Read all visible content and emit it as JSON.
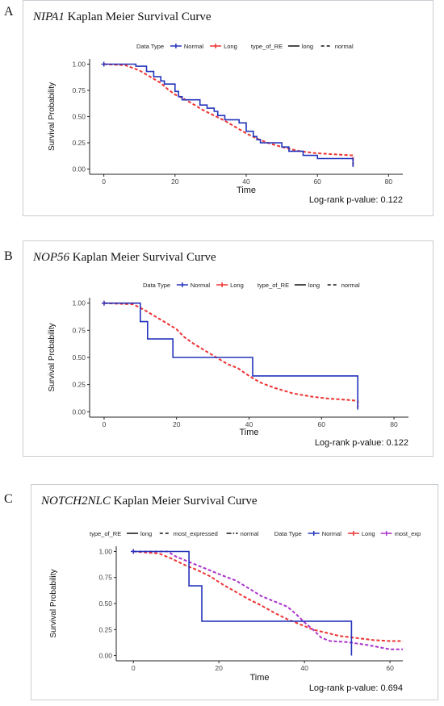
{
  "panels": [
    {
      "letter": "A",
      "title_gene": "NIPA1",
      "title_rest": " Kaplan Meier Survival Curve",
      "legend": {
        "groups": [
          {
            "title": "Data Type",
            "items": [
              {
                "label": "Normal",
                "kind": "series",
                "color": "#2233bb"
              },
              {
                "label": "Long",
                "kind": "series",
                "color": "#ee3333"
              }
            ]
          },
          {
            "title": "type_of_RE",
            "items": [
              {
                "label": "long",
                "kind": "solid"
              },
              {
                "label": "normal",
                "kind": "dashed"
              }
            ]
          }
        ]
      },
      "pvalue_text": "Log-rank p-value:  0.122",
      "chart_data": {
        "type": "line",
        "xlabel": "Time",
        "ylabel": "Survival Probability",
        "xlim": [
          -4,
          84
        ],
        "ylim": [
          -0.05,
          1.05
        ],
        "xticks": [
          0,
          20,
          40,
          60,
          80
        ],
        "yticks": [
          0.0,
          0.25,
          0.5,
          0.75,
          1.0
        ],
        "ytick_labels": [
          "0.00",
          "0.25",
          "0.50",
          "0.75",
          "1.00"
        ],
        "grid": false,
        "series": [
          {
            "name": "Normal",
            "color": "#2233bb",
            "dash": false,
            "points": [
              [
                0,
                1.0
              ],
              [
                9,
                1.0
              ],
              [
                9,
                0.98
              ],
              [
                12,
                0.98
              ],
              [
                12,
                0.93
              ],
              [
                14,
                0.93
              ],
              [
                14,
                0.88
              ],
              [
                16,
                0.88
              ],
              [
                16,
                0.84
              ],
              [
                17,
                0.84
              ],
              [
                17,
                0.81
              ],
              [
                20,
                0.81
              ],
              [
                20,
                0.74
              ],
              [
                21,
                0.74
              ],
              [
                21,
                0.69
              ],
              [
                22,
                0.69
              ],
              [
                22,
                0.66
              ],
              [
                27,
                0.66
              ],
              [
                27,
                0.61
              ],
              [
                29,
                0.61
              ],
              [
                29,
                0.58
              ],
              [
                31,
                0.58
              ],
              [
                31,
                0.55
              ],
              [
                32,
                0.55
              ],
              [
                32,
                0.51
              ],
              [
                34,
                0.51
              ],
              [
                34,
                0.47
              ],
              [
                38,
                0.47
              ],
              [
                38,
                0.44
              ],
              [
                40,
                0.44
              ],
              [
                40,
                0.36
              ],
              [
                42,
                0.36
              ],
              [
                42,
                0.31
              ],
              [
                43,
                0.31
              ],
              [
                43,
                0.28
              ],
              [
                44,
                0.28
              ],
              [
                44,
                0.25
              ],
              [
                50,
                0.25
              ],
              [
                50,
                0.21
              ],
              [
                52,
                0.21
              ],
              [
                52,
                0.17
              ],
              [
                56,
                0.17
              ],
              [
                56,
                0.13
              ],
              [
                60,
                0.13
              ],
              [
                60,
                0.1
              ],
              [
                70,
                0.1
              ],
              [
                70,
                0.02
              ]
            ]
          },
          {
            "name": "Long",
            "color": "#ee3333",
            "dash": true,
            "points": [
              [
                0,
                1.0
              ],
              [
                6,
                0.99
              ],
              [
                10,
                0.94
              ],
              [
                13,
                0.88
              ],
              [
                16,
                0.82
              ],
              [
                18,
                0.76
              ],
              [
                20,
                0.71
              ],
              [
                22,
                0.68
              ],
              [
                25,
                0.62
              ],
              [
                28,
                0.56
              ],
              [
                31,
                0.51
              ],
              [
                34,
                0.46
              ],
              [
                37,
                0.4
              ],
              [
                40,
                0.34
              ],
              [
                43,
                0.29
              ],
              [
                46,
                0.25
              ],
              [
                50,
                0.21
              ],
              [
                55,
                0.17
              ],
              [
                60,
                0.15
              ],
              [
                65,
                0.14
              ],
              [
                70,
                0.13
              ],
              [
                70,
                0.04
              ]
            ]
          }
        ]
      }
    },
    {
      "letter": "B",
      "title_gene": "NOP56",
      "title_rest": " Kaplan Meier Survival Curve",
      "legend": {
        "groups": [
          {
            "title": "Data Type",
            "items": [
              {
                "label": "Normal",
                "kind": "series",
                "color": "#2233bb"
              },
              {
                "label": "Long",
                "kind": "series",
                "color": "#ee3333"
              }
            ]
          },
          {
            "title": "type_of_RE",
            "items": [
              {
                "label": "long",
                "kind": "solid"
              },
              {
                "label": "normal",
                "kind": "dashed"
              }
            ]
          }
        ]
      },
      "pvalue_text": "Log-rank p-value:  0.122",
      "chart_data": {
        "type": "line",
        "xlabel": "Time",
        "ylabel": "Survival Probability",
        "xlim": [
          -4,
          84
        ],
        "ylim": [
          -0.05,
          1.05
        ],
        "xticks": [
          0,
          20,
          40,
          60,
          80
        ],
        "yticks": [
          0.0,
          0.25,
          0.5,
          0.75,
          1.0
        ],
        "ytick_labels": [
          "0.00",
          "0.25",
          "0.50",
          "0.75",
          "1.00"
        ],
        "grid": false,
        "series": [
          {
            "name": "Normal",
            "color": "#2233bb",
            "dash": false,
            "points": [
              [
                0,
                1.0
              ],
              [
                10,
                1.0
              ],
              [
                10,
                0.83
              ],
              [
                12,
                0.83
              ],
              [
                12,
                0.67
              ],
              [
                19,
                0.67
              ],
              [
                19,
                0.5
              ],
              [
                41,
                0.5
              ],
              [
                41,
                0.33
              ],
              [
                70,
                0.33
              ],
              [
                70,
                0.02
              ]
            ]
          },
          {
            "name": "Long",
            "color": "#ee3333",
            "dash": true,
            "points": [
              [
                0,
                1.0
              ],
              [
                8,
                0.99
              ],
              [
                11,
                0.94
              ],
              [
                14,
                0.88
              ],
              [
                17,
                0.82
              ],
              [
                20,
                0.76
              ],
              [
                22,
                0.69
              ],
              [
                25,
                0.62
              ],
              [
                28,
                0.56
              ],
              [
                31,
                0.5
              ],
              [
                34,
                0.44
              ],
              [
                37,
                0.4
              ],
              [
                40,
                0.33
              ],
              [
                43,
                0.27
              ],
              [
                47,
                0.22
              ],
              [
                52,
                0.17
              ],
              [
                57,
                0.14
              ],
              [
                62,
                0.12
              ],
              [
                67,
                0.11
              ],
              [
                70,
                0.1
              ],
              [
                70,
                0.04
              ]
            ]
          }
        ]
      }
    },
    {
      "letter": "C",
      "title_gene": "NOTCH2NLC",
      "title_rest": " Kaplan Meier Survival Curve",
      "legend": {
        "groups": [
          {
            "title": "type_of_RE",
            "items": [
              {
                "label": "long",
                "kind": "solid"
              },
              {
                "label": "most_expressed",
                "kind": "dashed"
              },
              {
                "label": "normal",
                "kind": "dotdash"
              }
            ]
          },
          {
            "title": "Data Type",
            "items": [
              {
                "label": "Normal",
                "kind": "series",
                "color": "#2233bb"
              },
              {
                "label": "Long",
                "kind": "series",
                "color": "#ee3333"
              },
              {
                "label": "most_exp",
                "kind": "series",
                "color": "#aa33cc"
              }
            ]
          }
        ]
      },
      "pvalue_text": "Log-rank p-value:  0.694",
      "chart_data": {
        "type": "line",
        "xlabel": "Time",
        "ylabel": "Survival Probability",
        "xlim": [
          -4,
          63
        ],
        "ylim": [
          -0.05,
          1.05
        ],
        "xticks": [
          0,
          20,
          40,
          60
        ],
        "yticks": [
          0.0,
          0.25,
          0.5,
          0.75,
          1.0
        ],
        "ytick_labels": [
          "0.00",
          "0.25",
          "0.50",
          "0.75",
          "1.00"
        ],
        "grid": false,
        "series": [
          {
            "name": "Normal",
            "color": "#2233bb",
            "dash": false,
            "points": [
              [
                0,
                1.0
              ],
              [
                13,
                1.0
              ],
              [
                13,
                0.67
              ],
              [
                16,
                0.67
              ],
              [
                16,
                0.33
              ],
              [
                51,
                0.33
              ],
              [
                51,
                0.0
              ]
            ]
          },
          {
            "name": "Long",
            "color": "#ee3333",
            "dash": true,
            "points": [
              [
                0,
                1.0
              ],
              [
                6,
                0.98
              ],
              [
                9,
                0.93
              ],
              [
                12,
                0.87
              ],
              [
                15,
                0.82
              ],
              [
                18,
                0.76
              ],
              [
                21,
                0.68
              ],
              [
                24,
                0.61
              ],
              [
                27,
                0.54
              ],
              [
                30,
                0.48
              ],
              [
                33,
                0.41
              ],
              [
                36,
                0.35
              ],
              [
                39,
                0.3
              ],
              [
                42,
                0.25
              ],
              [
                45,
                0.22
              ],
              [
                48,
                0.19
              ],
              [
                52,
                0.17
              ],
              [
                56,
                0.15
              ],
              [
                60,
                0.14
              ],
              [
                63,
                0.14
              ]
            ]
          },
          {
            "name": "most_exp",
            "color": "#aa33cc",
            "dash": true,
            "points": [
              [
                0,
                1.0
              ],
              [
                8,
                1.0
              ],
              [
                10,
                0.95
              ],
              [
                13,
                0.9
              ],
              [
                16,
                0.85
              ],
              [
                19,
                0.8
              ],
              [
                22,
                0.75
              ],
              [
                24,
                0.72
              ],
              [
                26,
                0.67
              ],
              [
                28,
                0.62
              ],
              [
                30,
                0.57
              ],
              [
                33,
                0.52
              ],
              [
                36,
                0.47
              ],
              [
                38,
                0.4
              ],
              [
                40,
                0.32
              ],
              [
                42,
                0.25
              ],
              [
                44,
                0.17
              ],
              [
                46,
                0.14
              ],
              [
                50,
                0.13
              ],
              [
                55,
                0.1
              ],
              [
                60,
                0.06
              ],
              [
                63,
                0.06
              ]
            ]
          }
        ]
      }
    }
  ]
}
